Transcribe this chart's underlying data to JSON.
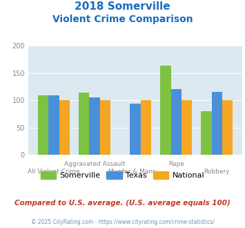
{
  "title_line1": "2018 Somerville",
  "title_line2": "Violent Crime Comparison",
  "somerville": [
    109,
    114,
    0,
    163,
    80
  ],
  "texas": [
    109,
    105,
    94,
    121,
    115
  ],
  "national": [
    100,
    100,
    100,
    100,
    100
  ],
  "colors": {
    "somerville": "#7dc242",
    "texas": "#4a90d9",
    "national": "#f5a623"
  },
  "ylim": [
    0,
    200
  ],
  "yticks": [
    0,
    50,
    100,
    150,
    200
  ],
  "background_color": "#dce9f0",
  "title_color": "#1a6bbf",
  "row1_labels": {
    "1": "Aggravated Assault",
    "3": "Rape"
  },
  "row2_labels": {
    "0": "All Violent Crime",
    "2": "Murder & Mans...",
    "4": "Robbery"
  },
  "legend_labels": [
    "Somerville",
    "Texas",
    "National"
  ],
  "footer_text": "Compared to U.S. average. (U.S. average equals 100)",
  "copyright_text": "© 2025 CityRating.com - https://www.cityrating.com/crime-statistics/",
  "footer_color": "#c0392b",
  "copyright_color": "#7090b0"
}
